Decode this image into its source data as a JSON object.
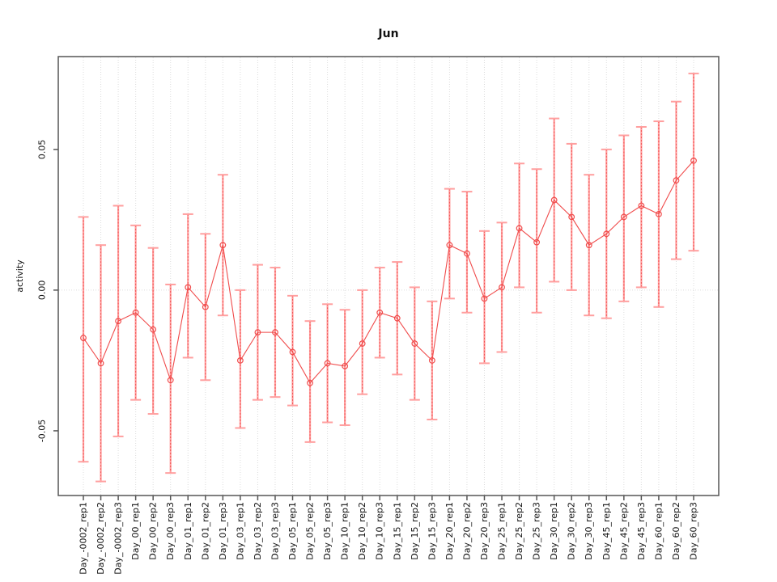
{
  "title": "Jun",
  "ylabel": "activity",
  "chart_data": {
    "type": "line",
    "subtype": "points-with-error-bars",
    "title": "Jun",
    "xlabel": "",
    "ylabel": "activity",
    "categories": [
      "Day_-0002_rep1",
      "Day_-0002_rep2",
      "Day_-0002_rep3",
      "Day_00_rep1",
      "Day_00_rep2",
      "Day_00_rep3",
      "Day_01_rep1",
      "Day_01_rep2",
      "Day_01_rep3",
      "Day_03_rep1",
      "Day_03_rep2",
      "Day_03_rep3",
      "Day_05_rep1",
      "Day_05_rep2",
      "Day_05_rep3",
      "Day_10_rep1",
      "Day_10_rep2",
      "Day_10_rep3",
      "Day_15_rep1",
      "Day_15_rep2",
      "Day_15_rep3",
      "Day_20_rep1",
      "Day_20_rep2",
      "Day_20_rep3",
      "Day_25_rep1",
      "Day_25_rep2",
      "Day_25_rep3",
      "Day_30_rep1",
      "Day_30_rep2",
      "Day_30_rep3",
      "Day_45_rep1",
      "Day_45_rep2",
      "Day_45_rep3",
      "Day_60_rep1",
      "Day_60_rep2",
      "Day_60_rep3"
    ],
    "series": [
      {
        "name": "activity",
        "values": [
          -0.017,
          -0.026,
          -0.011,
          -0.008,
          -0.014,
          -0.032,
          0.001,
          -0.006,
          0.016,
          -0.025,
          -0.015,
          -0.015,
          -0.022,
          -0.033,
          -0.026,
          -0.027,
          -0.019,
          -0.008,
          -0.01,
          -0.019,
          -0.025,
          0.016,
          0.013,
          -0.003,
          0.001,
          0.022,
          0.017,
          0.032,
          0.026,
          0.016,
          0.02,
          0.026,
          0.03,
          0.027,
          0.039,
          0.046
        ],
        "upper": [
          0.026,
          0.016,
          0.03,
          0.023,
          0.015,
          0.002,
          0.027,
          0.02,
          0.041,
          0.0,
          0.009,
          0.008,
          -0.002,
          -0.011,
          -0.005,
          -0.007,
          0.0,
          0.008,
          0.01,
          0.001,
          -0.004,
          0.036,
          0.035,
          0.021,
          0.024,
          0.045,
          0.043,
          0.061,
          0.052,
          0.041,
          0.05,
          0.055,
          0.058,
          0.06,
          0.067,
          0.077
        ],
        "lower": [
          -0.061,
          -0.068,
          -0.052,
          -0.039,
          -0.044,
          -0.065,
          -0.024,
          -0.032,
          -0.009,
          -0.049,
          -0.039,
          -0.038,
          -0.041,
          -0.054,
          -0.047,
          -0.048,
          -0.037,
          -0.024,
          -0.03,
          -0.039,
          -0.046,
          -0.003,
          -0.008,
          -0.026,
          -0.022,
          0.001,
          -0.008,
          0.003,
          0.0,
          -0.009,
          -0.01,
          -0.004,
          0.001,
          -0.006,
          0.011,
          0.014
        ]
      }
    ],
    "yticks": [
      -0.05,
      0,
      0.05
    ],
    "ytick_labels": [
      "-0.05",
      "0.00",
      "0.05"
    ],
    "ylim": [
      -0.073,
      0.083
    ],
    "grid": {
      "vertical_at_each_category": true,
      "zero_line": true,
      "style": "dotted"
    },
    "legend_position": "none",
    "colors": {
      "point": "#f04b4b",
      "line": "#f04b4b",
      "error_bar": "#ff9f9f",
      "error_bar_core": "#f25252",
      "grid": "#dcdcdc",
      "axis": "#555555",
      "text": "#111111",
      "background": "#ffffff"
    }
  }
}
